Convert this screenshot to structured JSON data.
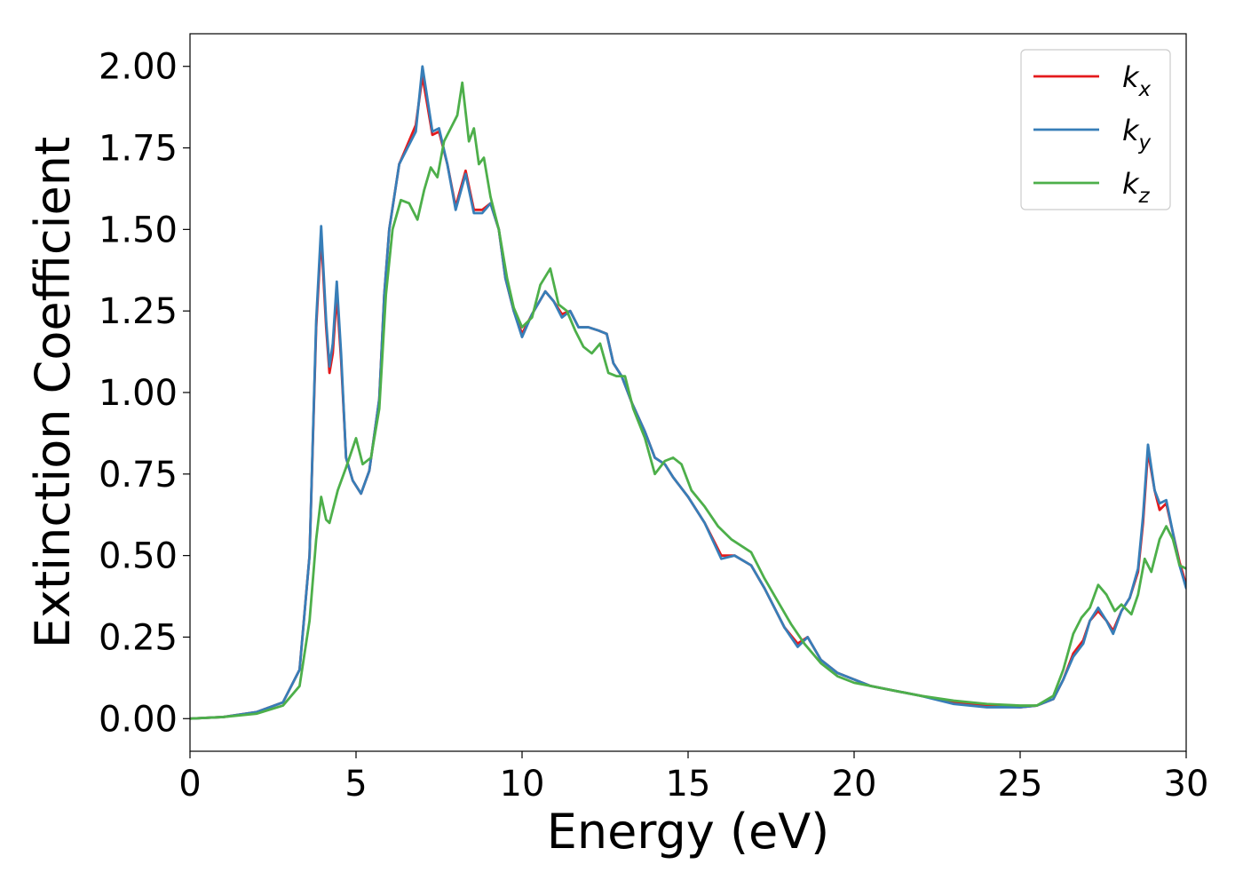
{
  "chart_data": {
    "type": "line",
    "title": "",
    "xlabel": "Energy (eV)",
    "ylabel": "Extinction Coefficient",
    "xlim": [
      0,
      30
    ],
    "ylim": [
      -0.1,
      2.1
    ],
    "xticks": [
      0,
      5,
      10,
      15,
      20,
      25,
      30
    ],
    "yticks": [
      0.0,
      0.25,
      0.5,
      0.75,
      1.0,
      1.25,
      1.5,
      1.75,
      2.0
    ],
    "xtick_labels": [
      "0",
      "5",
      "10",
      "15",
      "20",
      "25",
      "30"
    ],
    "ytick_labels": [
      "0.00",
      "0.25",
      "0.50",
      "0.75",
      "1.00",
      "1.25",
      "1.50",
      "1.75",
      "2.00"
    ],
    "grid": false,
    "legend_position": "top-right",
    "series": [
      {
        "name": "k_x",
        "label_base": "k",
        "label_sub": "x",
        "color": "#e41a1c",
        "points": [
          [
            0,
            0
          ],
          [
            1,
            0.005
          ],
          [
            2,
            0.02
          ],
          [
            2.8,
            0.05
          ],
          [
            3.3,
            0.15
          ],
          [
            3.6,
            0.5
          ],
          [
            3.8,
            1.2
          ],
          [
            3.95,
            1.48
          ],
          [
            4.1,
            1.2
          ],
          [
            4.2,
            1.06
          ],
          [
            4.3,
            1.12
          ],
          [
            4.42,
            1.3
          ],
          [
            4.55,
            1.1
          ],
          [
            4.7,
            0.8
          ],
          [
            4.9,
            0.73
          ],
          [
            5.15,
            0.69
          ],
          [
            5.4,
            0.76
          ],
          [
            5.7,
            0.98
          ],
          [
            5.85,
            1.3
          ],
          [
            6.0,
            1.5
          ],
          [
            6.3,
            1.7
          ],
          [
            6.55,
            1.76
          ],
          [
            6.8,
            1.82
          ],
          [
            7.0,
            1.97
          ],
          [
            7.15,
            1.88
          ],
          [
            7.3,
            1.79
          ],
          [
            7.5,
            1.8
          ],
          [
            7.75,
            1.7
          ],
          [
            8.0,
            1.57
          ],
          [
            8.3,
            1.68
          ],
          [
            8.55,
            1.56
          ],
          [
            8.8,
            1.56
          ],
          [
            9.05,
            1.58
          ],
          [
            9.3,
            1.5
          ],
          [
            9.5,
            1.35
          ],
          [
            9.75,
            1.25
          ],
          [
            10.0,
            1.18
          ],
          [
            10.3,
            1.24
          ],
          [
            10.7,
            1.31
          ],
          [
            10.95,
            1.28
          ],
          [
            11.2,
            1.24
          ],
          [
            11.45,
            1.25
          ],
          [
            11.7,
            1.2
          ],
          [
            12.0,
            1.2
          ],
          [
            12.3,
            1.19
          ],
          [
            12.55,
            1.18
          ],
          [
            12.75,
            1.09
          ],
          [
            13.0,
            1.05
          ],
          [
            13.3,
            0.97
          ],
          [
            13.7,
            0.88
          ],
          [
            14.0,
            0.8
          ],
          [
            14.3,
            0.78
          ],
          [
            14.55,
            0.74
          ],
          [
            15.0,
            0.68
          ],
          [
            15.5,
            0.6
          ],
          [
            16.0,
            0.5
          ],
          [
            16.4,
            0.5
          ],
          [
            16.9,
            0.47
          ],
          [
            17.3,
            0.4
          ],
          [
            17.6,
            0.34
          ],
          [
            17.9,
            0.28
          ],
          [
            18.3,
            0.23
          ],
          [
            18.6,
            0.25
          ],
          [
            19.0,
            0.18
          ],
          [
            19.5,
            0.14
          ],
          [
            20.0,
            0.12
          ],
          [
            20.5,
            0.1
          ],
          [
            21.0,
            0.09
          ],
          [
            22.0,
            0.07
          ],
          [
            23.0,
            0.05
          ],
          [
            24.0,
            0.04
          ],
          [
            25.0,
            0.035
          ],
          [
            25.5,
            0.04
          ],
          [
            26.0,
            0.06
          ],
          [
            26.3,
            0.12
          ],
          [
            26.6,
            0.2
          ],
          [
            26.9,
            0.24
          ],
          [
            27.1,
            0.3
          ],
          [
            27.35,
            0.33
          ],
          [
            27.6,
            0.3
          ],
          [
            27.8,
            0.27
          ],
          [
            28.05,
            0.33
          ],
          [
            28.3,
            0.37
          ],
          [
            28.55,
            0.45
          ],
          [
            28.7,
            0.6
          ],
          [
            28.85,
            0.82
          ],
          [
            29.05,
            0.7
          ],
          [
            29.2,
            0.64
          ],
          [
            29.4,
            0.66
          ],
          [
            29.6,
            0.57
          ],
          [
            29.8,
            0.48
          ],
          [
            30.0,
            0.41
          ]
        ]
      },
      {
        "name": "k_y",
        "label_base": "k",
        "label_sub": "y",
        "color": "#377eb8",
        "points": [
          [
            0,
            0
          ],
          [
            1,
            0.005
          ],
          [
            2,
            0.02
          ],
          [
            2.8,
            0.05
          ],
          [
            3.3,
            0.15
          ],
          [
            3.6,
            0.5
          ],
          [
            3.8,
            1.22
          ],
          [
            3.95,
            1.51
          ],
          [
            4.1,
            1.22
          ],
          [
            4.2,
            1.08
          ],
          [
            4.3,
            1.15
          ],
          [
            4.42,
            1.34
          ],
          [
            4.55,
            1.12
          ],
          [
            4.7,
            0.8
          ],
          [
            4.9,
            0.73
          ],
          [
            5.15,
            0.69
          ],
          [
            5.4,
            0.76
          ],
          [
            5.7,
            0.98
          ],
          [
            5.85,
            1.3
          ],
          [
            6.0,
            1.5
          ],
          [
            6.3,
            1.7
          ],
          [
            6.55,
            1.75
          ],
          [
            6.8,
            1.8
          ],
          [
            7.0,
            2.0
          ],
          [
            7.15,
            1.9
          ],
          [
            7.3,
            1.8
          ],
          [
            7.5,
            1.81
          ],
          [
            7.75,
            1.7
          ],
          [
            8.0,
            1.56
          ],
          [
            8.3,
            1.67
          ],
          [
            8.55,
            1.55
          ],
          [
            8.8,
            1.55
          ],
          [
            9.05,
            1.58
          ],
          [
            9.3,
            1.5
          ],
          [
            9.5,
            1.35
          ],
          [
            9.75,
            1.25
          ],
          [
            10.0,
            1.17
          ],
          [
            10.3,
            1.24
          ],
          [
            10.7,
            1.31
          ],
          [
            10.95,
            1.28
          ],
          [
            11.2,
            1.23
          ],
          [
            11.45,
            1.25
          ],
          [
            11.7,
            1.2
          ],
          [
            12.0,
            1.2
          ],
          [
            12.3,
            1.19
          ],
          [
            12.55,
            1.18
          ],
          [
            12.75,
            1.09
          ],
          [
            13.0,
            1.05
          ],
          [
            13.3,
            0.97
          ],
          [
            13.7,
            0.88
          ],
          [
            14.0,
            0.8
          ],
          [
            14.3,
            0.78
          ],
          [
            14.55,
            0.74
          ],
          [
            15.0,
            0.68
          ],
          [
            15.5,
            0.6
          ],
          [
            16.0,
            0.49
          ],
          [
            16.4,
            0.5
          ],
          [
            16.9,
            0.47
          ],
          [
            17.3,
            0.4
          ],
          [
            17.6,
            0.34
          ],
          [
            17.9,
            0.28
          ],
          [
            18.3,
            0.22
          ],
          [
            18.6,
            0.25
          ],
          [
            19.0,
            0.18
          ],
          [
            19.5,
            0.14
          ],
          [
            20.0,
            0.12
          ],
          [
            20.5,
            0.1
          ],
          [
            21.0,
            0.09
          ],
          [
            22.0,
            0.07
          ],
          [
            23.0,
            0.045
          ],
          [
            24.0,
            0.035
          ],
          [
            25.0,
            0.035
          ],
          [
            25.5,
            0.04
          ],
          [
            26.0,
            0.06
          ],
          [
            26.3,
            0.12
          ],
          [
            26.6,
            0.19
          ],
          [
            26.9,
            0.23
          ],
          [
            27.1,
            0.3
          ],
          [
            27.35,
            0.34
          ],
          [
            27.6,
            0.3
          ],
          [
            27.8,
            0.26
          ],
          [
            28.05,
            0.33
          ],
          [
            28.3,
            0.37
          ],
          [
            28.55,
            0.46
          ],
          [
            28.7,
            0.62
          ],
          [
            28.85,
            0.84
          ],
          [
            29.05,
            0.7
          ],
          [
            29.2,
            0.66
          ],
          [
            29.4,
            0.67
          ],
          [
            29.6,
            0.57
          ],
          [
            29.8,
            0.47
          ],
          [
            30.0,
            0.4
          ]
        ]
      },
      {
        "name": "k_z",
        "label_base": "k",
        "label_sub": "z",
        "color": "#4daf4a",
        "points": [
          [
            0,
            0
          ],
          [
            1,
            0.005
          ],
          [
            2,
            0.015
          ],
          [
            2.8,
            0.04
          ],
          [
            3.3,
            0.1
          ],
          [
            3.6,
            0.3
          ],
          [
            3.8,
            0.55
          ],
          [
            3.95,
            0.68
          ],
          [
            4.1,
            0.61
          ],
          [
            4.2,
            0.6
          ],
          [
            4.45,
            0.7
          ],
          [
            4.7,
            0.77
          ],
          [
            5.0,
            0.86
          ],
          [
            5.2,
            0.78
          ],
          [
            5.45,
            0.8
          ],
          [
            5.7,
            0.95
          ],
          [
            5.9,
            1.3
          ],
          [
            6.1,
            1.5
          ],
          [
            6.35,
            1.59
          ],
          [
            6.6,
            1.58
          ],
          [
            6.85,
            1.53
          ],
          [
            7.05,
            1.62
          ],
          [
            7.25,
            1.69
          ],
          [
            7.45,
            1.66
          ],
          [
            7.65,
            1.77
          ],
          [
            7.9,
            1.82
          ],
          [
            8.05,
            1.85
          ],
          [
            8.2,
            1.95
          ],
          [
            8.4,
            1.77
          ],
          [
            8.55,
            1.81
          ],
          [
            8.7,
            1.7
          ],
          [
            8.85,
            1.72
          ],
          [
            9.05,
            1.6
          ],
          [
            9.3,
            1.5
          ],
          [
            9.55,
            1.35
          ],
          [
            9.75,
            1.26
          ],
          [
            10.0,
            1.2
          ],
          [
            10.3,
            1.23
          ],
          [
            10.55,
            1.33
          ],
          [
            10.85,
            1.38
          ],
          [
            11.1,
            1.27
          ],
          [
            11.35,
            1.25
          ],
          [
            11.6,
            1.19
          ],
          [
            11.85,
            1.14
          ],
          [
            12.1,
            1.12
          ],
          [
            12.35,
            1.15
          ],
          [
            12.6,
            1.06
          ],
          [
            12.85,
            1.05
          ],
          [
            13.1,
            1.05
          ],
          [
            13.35,
            0.95
          ],
          [
            13.7,
            0.86
          ],
          [
            14.0,
            0.75
          ],
          [
            14.3,
            0.79
          ],
          [
            14.55,
            0.8
          ],
          [
            14.8,
            0.78
          ],
          [
            15.1,
            0.7
          ],
          [
            15.5,
            0.65
          ],
          [
            15.9,
            0.59
          ],
          [
            16.3,
            0.55
          ],
          [
            16.9,
            0.51
          ],
          [
            17.3,
            0.43
          ],
          [
            17.7,
            0.36
          ],
          [
            18.1,
            0.29
          ],
          [
            18.5,
            0.23
          ],
          [
            19.0,
            0.17
          ],
          [
            19.5,
            0.13
          ],
          [
            20.0,
            0.11
          ],
          [
            20.5,
            0.1
          ],
          [
            21.0,
            0.09
          ],
          [
            22.0,
            0.07
          ],
          [
            23.0,
            0.055
          ],
          [
            24.0,
            0.045
          ],
          [
            25.0,
            0.04
          ],
          [
            25.5,
            0.04
          ],
          [
            26.0,
            0.07
          ],
          [
            26.3,
            0.15
          ],
          [
            26.6,
            0.26
          ],
          [
            26.85,
            0.31
          ],
          [
            27.1,
            0.34
          ],
          [
            27.35,
            0.41
          ],
          [
            27.6,
            0.38
          ],
          [
            27.85,
            0.33
          ],
          [
            28.05,
            0.35
          ],
          [
            28.35,
            0.32
          ],
          [
            28.55,
            0.38
          ],
          [
            28.75,
            0.49
          ],
          [
            28.95,
            0.45
          ],
          [
            29.2,
            0.55
          ],
          [
            29.4,
            0.59
          ],
          [
            29.6,
            0.55
          ],
          [
            29.8,
            0.47
          ],
          [
            30.0,
            0.46
          ]
        ]
      }
    ]
  }
}
